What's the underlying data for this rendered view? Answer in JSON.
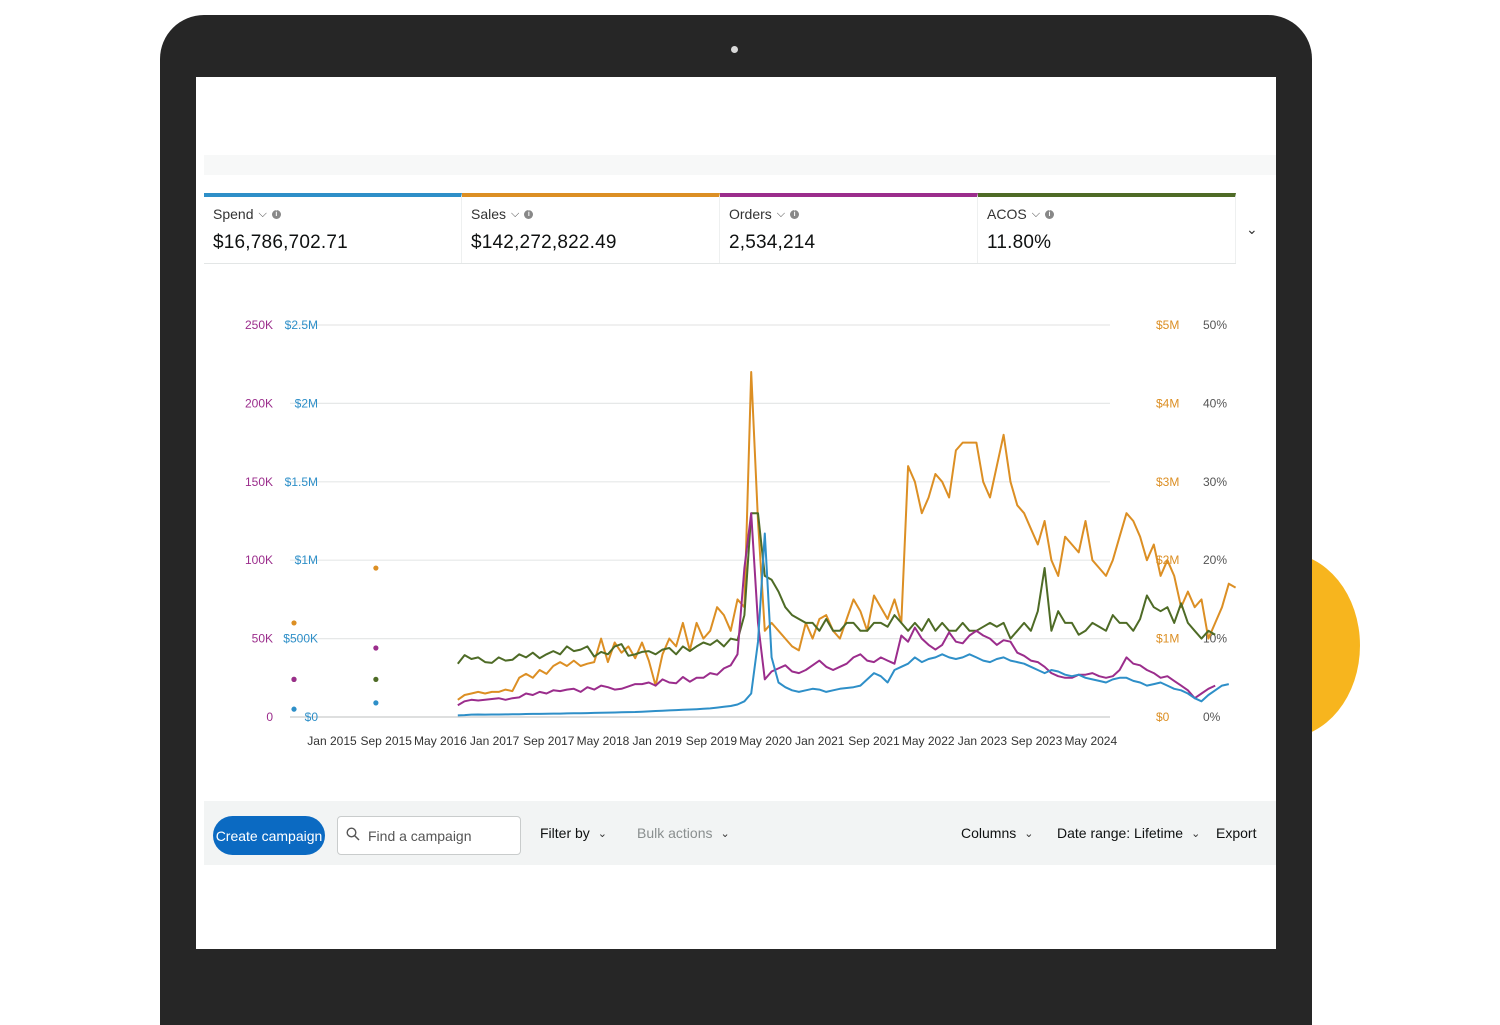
{
  "metrics": [
    {
      "label": "Spend",
      "value": "$16,786,702.71",
      "color": "#2e8fc8"
    },
    {
      "label": "Sales",
      "value": "$142,272,822.49",
      "color": "#dc8f24"
    },
    {
      "label": "Orders",
      "value": "2,534,214",
      "color": "#9b2d8c"
    },
    {
      "label": "ACOS",
      "value": "11.80%",
      "color": "#4e6b26"
    }
  ],
  "icons": {
    "caret": "chevron-down-icon",
    "info": "info-icon",
    "search": "search-icon"
  },
  "chart_data": {
    "type": "line",
    "x_ticks": [
      "Jan 2015",
      "Sep 2015",
      "May 2016",
      "Jan 2017",
      "Sep 2017",
      "May 2018",
      "Jan 2019",
      "Sep 2019",
      "May 2020",
      "Jan 2021",
      "Sep 2021",
      "May 2022",
      "Jan 2023",
      "Sep 2023",
      "May 2024"
    ],
    "axes": {
      "orders": {
        "ticks": [
          "250K",
          "200K",
          "150K",
          "100K",
          "50K",
          "0"
        ],
        "range": [
          0,
          250000
        ],
        "color": "#9b2d8c"
      },
      "spend": {
        "ticks": [
          "$2.5M",
          "$2M",
          "$1.5M",
          "$1M",
          "$500K",
          "$0"
        ],
        "range": [
          0,
          2500000
        ],
        "color": "#2e8fc8"
      },
      "sales": {
        "ticks": [
          "$5M",
          "$4M",
          "$3M",
          "$2M",
          "$1M",
          "$0"
        ],
        "range": [
          0,
          5000000
        ],
        "color": "#dc8f24"
      },
      "acos": {
        "ticks": [
          "50%",
          "40%",
          "30%",
          "20%",
          "10%",
          "0%"
        ],
        "range": [
          0,
          50
        ],
        "color": "#4e6b26"
      }
    },
    "x_start_index": 0,
    "line_start_index": 24,
    "series": [
      {
        "name": "Sales",
        "axis": "sales",
        "color": "#dc8f24",
        "isolated": [
          [
            0,
            1.2
          ],
          [
            3,
            1.9
          ]
        ],
        "values": [
          0.22,
          0.28,
          0.3,
          0.32,
          0.3,
          0.32,
          0.32,
          0.35,
          0.33,
          0.5,
          0.55,
          0.5,
          0.6,
          0.55,
          0.65,
          0.7,
          0.65,
          0.72,
          0.65,
          0.68,
          0.7,
          1.0,
          0.7,
          0.95,
          0.82,
          0.9,
          0.75,
          0.95,
          0.72,
          0.4,
          0.8,
          1.0,
          0.9,
          1.2,
          0.85,
          1.2,
          1.0,
          1.1,
          1.4,
          1.3,
          1.1,
          1.5,
          1.4,
          4.4,
          2.5,
          1.1,
          1.2,
          1.1,
          1.0,
          0.9,
          0.85,
          1.2,
          1.0,
          1.25,
          1.3,
          1.1,
          1.0,
          1.25,
          1.5,
          1.35,
          1.1,
          1.55,
          1.4,
          1.25,
          1.5,
          1.2,
          3.2,
          3.0,
          2.6,
          2.8,
          3.1,
          3.0,
          2.8,
          3.4,
          3.5,
          3.5,
          3.5,
          3.0,
          2.8,
          3.2,
          3.6,
          3.0,
          2.7,
          2.6,
          2.4,
          2.2,
          2.5,
          2.0,
          1.8,
          2.3,
          2.2,
          2.1,
          2.5,
          2.0,
          1.9,
          1.8,
          2.0,
          2.3,
          2.6,
          2.5,
          2.3,
          2.0,
          2.2,
          1.8,
          2.0,
          1.8,
          1.4,
          1.6,
          1.4,
          1.5,
          1.0,
          1.2,
          1.4,
          1.7,
          1.65
        ]
      },
      {
        "name": "ACOS",
        "axis": "acos",
        "color": "#4e6b26",
        "isolated": [
          [
            0,
            4.8
          ],
          [
            3,
            4.8
          ]
        ],
        "values": [
          6.8,
          7.9,
          7.4,
          7.6,
          7.0,
          6.9,
          7.6,
          7.2,
          7.3,
          8.0,
          7.6,
          8.2,
          7.5,
          8.0,
          8.4,
          8.0,
          9.0,
          8.4,
          8.6,
          9.0,
          7.7,
          8.3,
          8.0,
          9.0,
          9.3,
          7.8,
          8.0,
          8.3,
          8.4,
          8.0,
          8.6,
          8.8,
          8.0,
          9.0,
          8.4,
          9.0,
          9.5,
          9.2,
          9.8,
          9.0,
          10.0,
          9.8,
          13.0,
          26.0,
          26.0,
          18.0,
          17.5,
          16.0,
          14.0,
          13.0,
          12.5,
          12.0,
          12.0,
          11.0,
          12.5,
          11.0,
          11.0,
          12.0,
          12.0,
          11.0,
          11.0,
          12.0,
          12.0,
          11.5,
          13.0,
          12.0,
          11.0,
          12.0,
          11.0,
          12.5,
          11.0,
          12.0,
          11.0,
          11.0,
          12.0,
          11.0,
          11.0,
          11.5,
          12.0,
          11.5,
          12.0,
          10.0,
          11.0,
          12.0,
          11.0,
          13.5,
          19.0,
          11.0,
          13.5,
          12.0,
          12.0,
          10.5,
          11.0,
          12.0,
          11.5,
          11.0,
          13.0,
          12.0,
          12.0,
          11.0,
          12.5,
          15.5,
          14.0,
          13.5,
          14.0,
          12.0,
          14.5,
          12.0,
          11.0,
          10.0,
          11.0,
          10.5
        ]
      },
      {
        "name": "Orders",
        "axis": "orders",
        "color": "#9b2d8c",
        "isolated": [
          [
            0,
            24000
          ],
          [
            3,
            44000
          ]
        ],
        "values": [
          7500,
          10000,
          11000,
          10500,
          11000,
          11500,
          12000,
          11000,
          12000,
          12500,
          15000,
          14000,
          16000,
          15000,
          17000,
          16500,
          17500,
          18000,
          16000,
          19000,
          17500,
          20000,
          19000,
          17500,
          18000,
          19500,
          21000,
          21000,
          22000,
          20000,
          24000,
          22000,
          21500,
          25500,
          22500,
          25000,
          25000,
          28000,
          27000,
          31000,
          33000,
          40000,
          95000,
          130000,
          60000,
          24000,
          29000,
          31000,
          33000,
          29000,
          28000,
          30000,
          33000,
          36000,
          32000,
          30000,
          32000,
          34000,
          38000,
          40000,
          36000,
          35000,
          38000,
          36000,
          34000,
          52000,
          48000,
          57000,
          50000,
          46000,
          43000,
          46000,
          54000,
          48000,
          47000,
          52000,
          55000,
          52000,
          50000,
          46000,
          49000,
          48000,
          41000,
          39000,
          36000,
          35000,
          32000,
          28000,
          26000,
          25000,
          25000,
          27000,
          27000,
          28000,
          26000,
          25000,
          26000,
          30000,
          38000,
          34000,
          33000,
          30000,
          28000,
          25000,
          26000,
          23000,
          20000,
          17000,
          12000,
          15000,
          18000,
          20000
        ]
      },
      {
        "name": "Spend",
        "axis": "spend",
        "color": "#2e8fc8",
        "isolated": [
          [
            0,
            50000
          ],
          [
            3,
            90000
          ]
        ],
        "values": [
          10000,
          12000,
          15000,
          16000,
          15000,
          16000,
          16000,
          16500,
          17000,
          18000,
          19000,
          19500,
          20000,
          21000,
          22000,
          22000,
          23000,
          23500,
          24000,
          25000,
          26000,
          27000,
          28000,
          29000,
          30000,
          31000,
          32000,
          34000,
          36000,
          38000,
          40000,
          42000,
          44000,
          46000,
          48000,
          50000,
          52000,
          55000,
          60000,
          65000,
          70000,
          80000,
          100000,
          150000,
          480000,
          1170000,
          380000,
          220000,
          190000,
          170000,
          160000,
          170000,
          180000,
          175000,
          160000,
          170000,
          180000,
          185000,
          190000,
          200000,
          240000,
          280000,
          260000,
          220000,
          300000,
          320000,
          340000,
          380000,
          350000,
          370000,
          380000,
          400000,
          380000,
          370000,
          380000,
          400000,
          380000,
          360000,
          350000,
          370000,
          380000,
          360000,
          350000,
          340000,
          320000,
          300000,
          280000,
          300000,
          290000,
          270000,
          260000,
          270000,
          250000,
          240000,
          230000,
          220000,
          240000,
          250000,
          250000,
          230000,
          220000,
          200000,
          210000,
          220000,
          200000,
          180000,
          170000,
          150000,
          120000,
          100000,
          140000,
          170000,
          200000,
          210000
        ]
      }
    ]
  },
  "toolbar": {
    "create": "Create campaign",
    "search_placeholder": "Find a campaign",
    "filter": "Filter by",
    "bulk": "Bulk actions",
    "columns": "Columns",
    "date_range": "Date range: Lifetime",
    "export": "Export"
  }
}
